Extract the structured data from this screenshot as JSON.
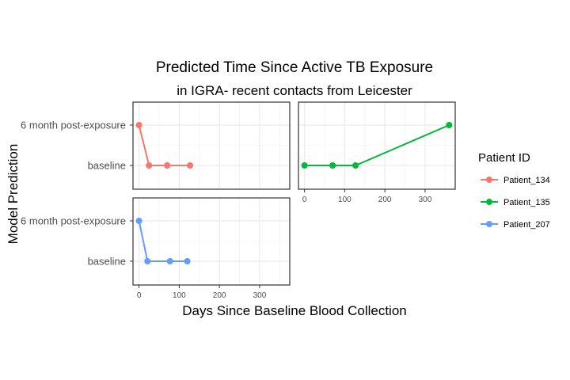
{
  "chart_data": {
    "type": "line",
    "title": "Predicted Time Since Active TB Exposure",
    "subtitle": "in IGRA- recent contacts from Leicester",
    "xlabel": "Days Since Baseline Blood Collection",
    "ylabel": "Model Prediction",
    "categories": [
      "baseline",
      "6 month post-exposure"
    ],
    "xlim": [
      -15,
      375
    ],
    "x_ticks": [
      0,
      100,
      200,
      300
    ],
    "grid": true,
    "legend": {
      "title": "Patient ID",
      "placement": "right",
      "entries": [
        "Patient_134",
        "Patient_135",
        "Patient_207"
      ]
    },
    "series": [
      {
        "name": "Patient_134",
        "color": "#F8766D",
        "x": [
          0,
          25,
          70,
          127
        ],
        "y": [
          "6 month post-exposure",
          "baseline",
          "baseline",
          "baseline"
        ]
      },
      {
        "name": "Patient_135",
        "color": "#00BA38",
        "x": [
          0,
          70,
          127,
          360
        ],
        "y": [
          "baseline",
          "baseline",
          "baseline",
          "6 month post-exposure"
        ]
      },
      {
        "name": "Patient_207",
        "color": "#619CFF",
        "x": [
          0,
          21,
          77,
          120
        ],
        "y": [
          "6 month post-exposure",
          "baseline",
          "baseline",
          "baseline"
        ]
      }
    ]
  }
}
